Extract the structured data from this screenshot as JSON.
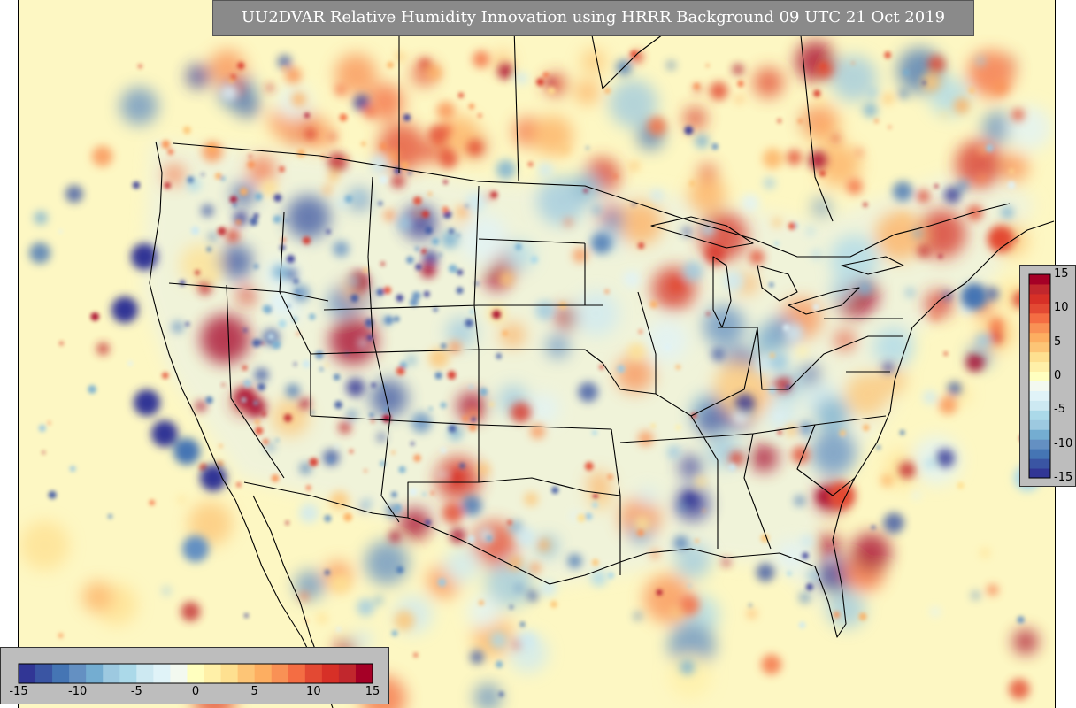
{
  "title": "UU2DVAR Relative Humidity Innovation using HRRR Background 09 UTC 21 Oct 2019",
  "colorbar": {
    "min": -15,
    "max": 15,
    "vertical_tick_labels": [
      "15",
      "10",
      "5",
      "0",
      "-5",
      "-10",
      "-15"
    ],
    "vertical_tick_values": [
      15,
      10,
      5,
      0,
      -5,
      -10,
      -15
    ],
    "horizontal_tick_labels": [
      "-15",
      "-10",
      "-5",
      "0",
      "5",
      "10",
      "15"
    ],
    "horizontal_tick_values": [
      -15,
      -10,
      -5,
      0,
      5,
      10,
      15
    ],
    "colors": [
      "#313695",
      "#3a55a3",
      "#4575b4",
      "#6490c2",
      "#74add1",
      "#9dc9e0",
      "#abd9e9",
      "#cde9f2",
      "#e0f3f8",
      "#f3f9f0",
      "#ffffbf",
      "#fff0a8",
      "#fee090",
      "#fdc576",
      "#fdae61",
      "#f99155",
      "#f46d43",
      "#e34933",
      "#d73027",
      "#c1272d",
      "#a50026"
    ]
  },
  "map": {
    "background_color": "#fdf7c3",
    "border_color": "#000000"
  }
}
